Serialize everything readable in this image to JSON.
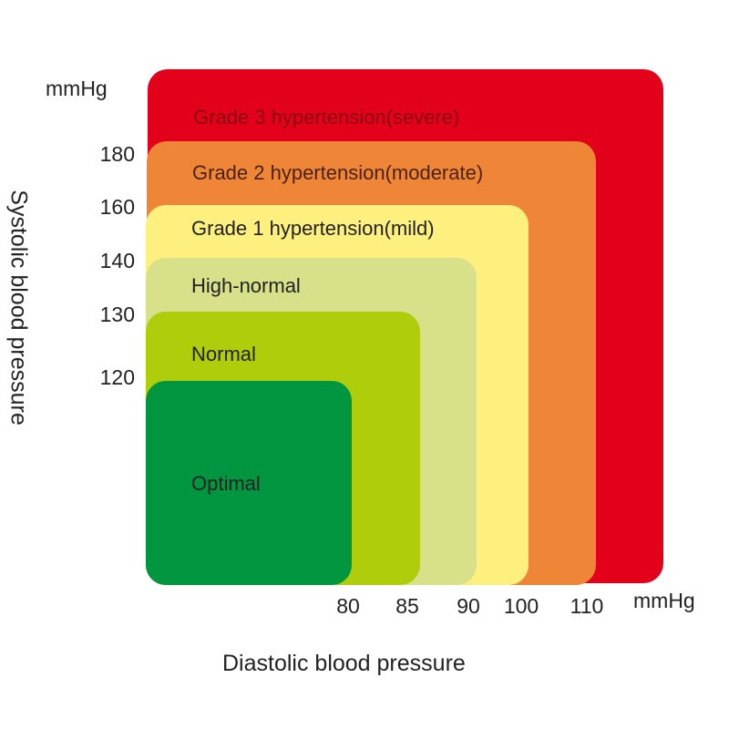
{
  "y_axis": {
    "title": "Systolic blood pressure",
    "unit": "mmHg",
    "ticks": [
      "180",
      "160",
      "140",
      "130",
      "120"
    ]
  },
  "x_axis": {
    "title": "Diastolic blood pressure",
    "unit": "mmHg",
    "ticks": [
      "80",
      "85",
      "90",
      "100",
      "110"
    ]
  },
  "zones": [
    {
      "label": "Grade 3 hypertension(severe)",
      "color": "#e3001b",
      "systolic": "≥180",
      "diastolic": "≥110"
    },
    {
      "label": "Grade 2 hypertension(moderate)",
      "color": "#ef8537",
      "systolic": "160-179",
      "diastolic": "100-109"
    },
    {
      "label": "Grade 1 hypertension(mild)",
      "color": "#fdf07e",
      "systolic": "140-159",
      "diastolic": "90-99"
    },
    {
      "label": "High-normal",
      "color": "#d8e08a",
      "systolic": "130-139",
      "diastolic": "85-89"
    },
    {
      "label": "Normal",
      "color": "#afcd0a",
      "systolic": "120-129",
      "diastolic": "80-84"
    },
    {
      "label": "Optimal",
      "color": "#009640",
      "systolic": "<120",
      "diastolic": "<80"
    }
  ]
}
